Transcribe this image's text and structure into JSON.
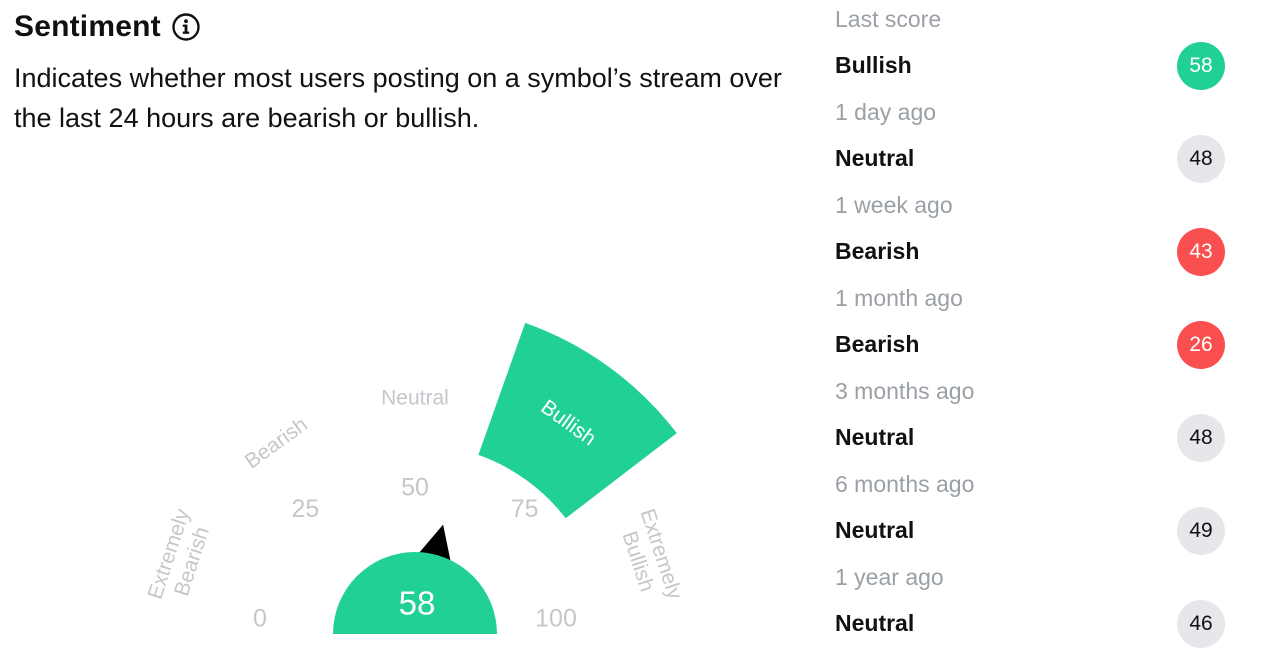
{
  "header": {
    "title": "Sentiment",
    "subtitle": "Indicates whether most users posting on a symbol’s stream over the last 24 hours are bearish or bullish."
  },
  "gauge": {
    "current_score": "58",
    "current_label": "Bullish",
    "score_fraction": 0.58,
    "zones": [
      {
        "label": "Extremely Bearish"
      },
      {
        "label": "Bearish"
      },
      {
        "label": "Neutral"
      },
      {
        "label": "Bullish"
      },
      {
        "label": "Extremely Bullish"
      }
    ],
    "ticks": [
      "0",
      "25",
      "50",
      "75",
      "100"
    ],
    "colors": {
      "active": "#21d095",
      "inactive_text": "#c4c7cb",
      "pointer": "#000000"
    }
  },
  "history": [
    {
      "time": "Last score",
      "label": "Bullish",
      "score": "58",
      "status": "bullish",
      "color": "#21d095",
      "text_color": "#ffffff"
    },
    {
      "time": "1 day ago",
      "label": "Neutral",
      "score": "48",
      "status": "neutral",
      "color": "#e6e7ea",
      "text_color": "#111111"
    },
    {
      "time": "1 week ago",
      "label": "Bearish",
      "score": "43",
      "status": "bearish",
      "color": "#fa4f4f",
      "text_color": "#ffffff"
    },
    {
      "time": "1 month ago",
      "label": "Bearish",
      "score": "26",
      "status": "bearish",
      "color": "#fa4f4f",
      "text_color": "#ffffff"
    },
    {
      "time": "3 months ago",
      "label": "Neutral",
      "score": "48",
      "status": "neutral",
      "color": "#e6e7ea",
      "text_color": "#111111"
    },
    {
      "time": "6 months ago",
      "label": "Neutral",
      "score": "49",
      "status": "neutral",
      "color": "#e6e7ea",
      "text_color": "#111111"
    },
    {
      "time": "1 year ago",
      "label": "Neutral",
      "score": "46",
      "status": "neutral",
      "color": "#e6e7ea",
      "text_color": "#111111"
    }
  ]
}
